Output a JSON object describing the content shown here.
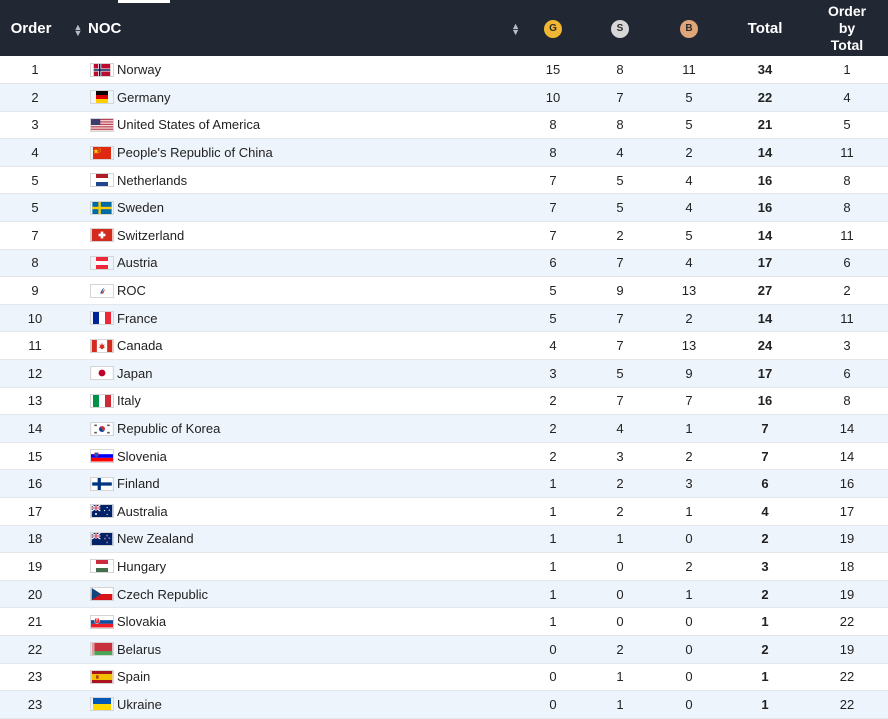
{
  "headers": {
    "order": "Order",
    "noc": "NOC",
    "gold": "G",
    "silver": "S",
    "bronze": "B",
    "total": "Total",
    "order_by_total_1": "Order",
    "order_by_total_2": "by",
    "order_by_total_3": "Total"
  },
  "colors": {
    "header_bg": "#222833",
    "gold": "#f2b732",
    "silver": "#d7d7d7",
    "bronze": "#e1a57a",
    "row_alt": "#eef4fb"
  },
  "rows": [
    {
      "order": "1",
      "noc": "Norway",
      "flag": "norway",
      "gold": "15",
      "silver": "8",
      "bronze": "11",
      "total": "34",
      "order_by_total": "1"
    },
    {
      "order": "2",
      "noc": "Germany",
      "flag": "germany",
      "gold": "10",
      "silver": "7",
      "bronze": "5",
      "total": "22",
      "order_by_total": "4"
    },
    {
      "order": "3",
      "noc": "United States of America",
      "flag": "usa",
      "gold": "8",
      "silver": "8",
      "bronze": "5",
      "total": "21",
      "order_by_total": "5"
    },
    {
      "order": "4",
      "noc": "People's Republic of China",
      "flag": "china",
      "gold": "8",
      "silver": "4",
      "bronze": "2",
      "total": "14",
      "order_by_total": "11"
    },
    {
      "order": "5",
      "noc": "Netherlands",
      "flag": "netherlands",
      "gold": "7",
      "silver": "5",
      "bronze": "4",
      "total": "16",
      "order_by_total": "8"
    },
    {
      "order": "5",
      "noc": "Sweden",
      "flag": "sweden",
      "gold": "7",
      "silver": "5",
      "bronze": "4",
      "total": "16",
      "order_by_total": "8"
    },
    {
      "order": "7",
      "noc": "Switzerland",
      "flag": "switzerland",
      "gold": "7",
      "silver": "2",
      "bronze": "5",
      "total": "14",
      "order_by_total": "11"
    },
    {
      "order": "8",
      "noc": "Austria",
      "flag": "austria",
      "gold": "6",
      "silver": "7",
      "bronze": "4",
      "total": "17",
      "order_by_total": "6"
    },
    {
      "order": "9",
      "noc": "ROC",
      "flag": "roc",
      "gold": "5",
      "silver": "9",
      "bronze": "13",
      "total": "27",
      "order_by_total": "2"
    },
    {
      "order": "10",
      "noc": "France",
      "flag": "france",
      "gold": "5",
      "silver": "7",
      "bronze": "2",
      "total": "14",
      "order_by_total": "11"
    },
    {
      "order": "11",
      "noc": "Canada",
      "flag": "canada",
      "gold": "4",
      "silver": "7",
      "bronze": "13",
      "total": "24",
      "order_by_total": "3"
    },
    {
      "order": "12",
      "noc": "Japan",
      "flag": "japan",
      "gold": "3",
      "silver": "5",
      "bronze": "9",
      "total": "17",
      "order_by_total": "6"
    },
    {
      "order": "13",
      "noc": "Italy",
      "flag": "italy",
      "gold": "2",
      "silver": "7",
      "bronze": "7",
      "total": "16",
      "order_by_total": "8"
    },
    {
      "order": "14",
      "noc": "Republic of Korea",
      "flag": "korea",
      "gold": "2",
      "silver": "4",
      "bronze": "1",
      "total": "7",
      "order_by_total": "14"
    },
    {
      "order": "15",
      "noc": "Slovenia",
      "flag": "slovenia",
      "gold": "2",
      "silver": "3",
      "bronze": "2",
      "total": "7",
      "order_by_total": "14"
    },
    {
      "order": "16",
      "noc": "Finland",
      "flag": "finland",
      "gold": "1",
      "silver": "2",
      "bronze": "3",
      "total": "6",
      "order_by_total": "16"
    },
    {
      "order": "17",
      "noc": "Australia",
      "flag": "australia",
      "gold": "1",
      "silver": "2",
      "bronze": "1",
      "total": "4",
      "order_by_total": "17"
    },
    {
      "order": "18",
      "noc": "New Zealand",
      "flag": "new-zealand",
      "gold": "1",
      "silver": "1",
      "bronze": "0",
      "total": "2",
      "order_by_total": "19"
    },
    {
      "order": "19",
      "noc": "Hungary",
      "flag": "hungary",
      "gold": "1",
      "silver": "0",
      "bronze": "2",
      "total": "3",
      "order_by_total": "18"
    },
    {
      "order": "20",
      "noc": "Czech Republic",
      "flag": "czech",
      "gold": "1",
      "silver": "0",
      "bronze": "1",
      "total": "2",
      "order_by_total": "19"
    },
    {
      "order": "21",
      "noc": "Slovakia",
      "flag": "slovakia",
      "gold": "1",
      "silver": "0",
      "bronze": "0",
      "total": "1",
      "order_by_total": "22"
    },
    {
      "order": "22",
      "noc": "Belarus",
      "flag": "belarus",
      "gold": "0",
      "silver": "2",
      "bronze": "0",
      "total": "2",
      "order_by_total": "19"
    },
    {
      "order": "23",
      "noc": "Spain",
      "flag": "spain",
      "gold": "0",
      "silver": "1",
      "bronze": "0",
      "total": "1",
      "order_by_total": "22"
    },
    {
      "order": "23",
      "noc": "Ukraine",
      "flag": "ukraine",
      "gold": "0",
      "silver": "1",
      "bronze": "0",
      "total": "1",
      "order_by_total": "22"
    }
  ]
}
